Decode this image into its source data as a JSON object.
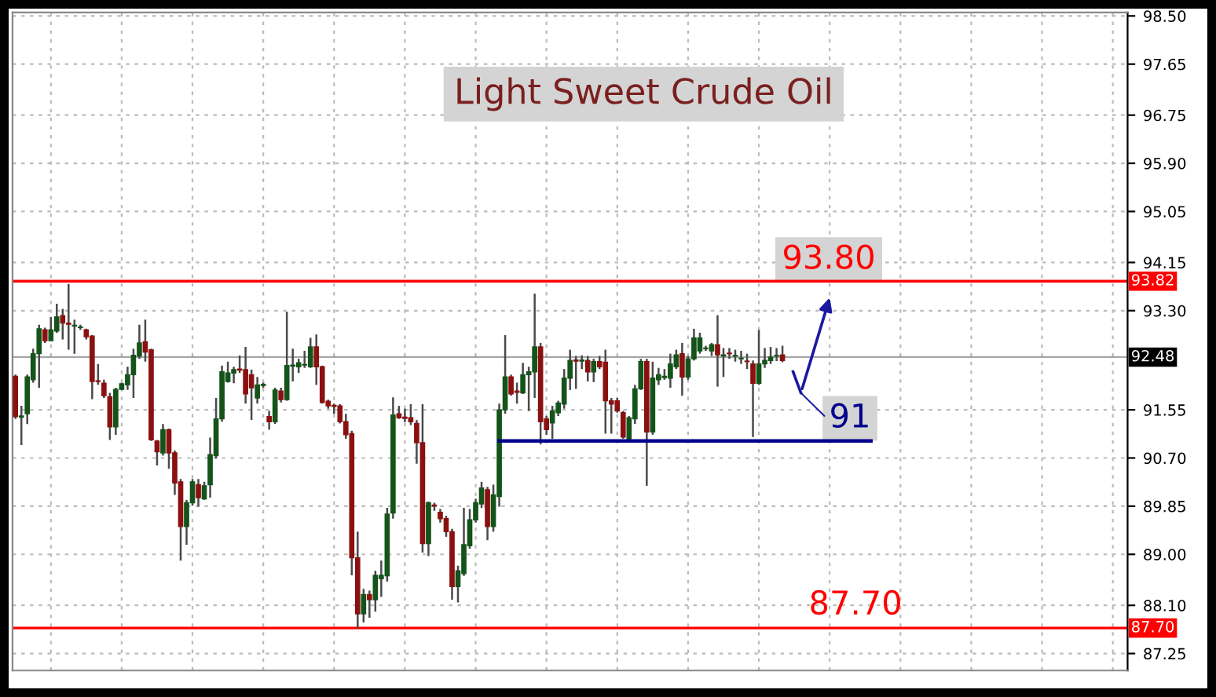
{
  "chart_data": {
    "type": "candlestick",
    "title": "Light Sweet Crude Oil",
    "categories": [
      null,
      null,
      null,
      null,
      null,
      null,
      null,
      null,
      null,
      null,
      null,
      null,
      null,
      null,
      null,
      null,
      null,
      null,
      null,
      null,
      null,
      null,
      null,
      null,
      null,
      null,
      null,
      null,
      null,
      null,
      null,
      null,
      null,
      null,
      null,
      null,
      null,
      null,
      null,
      null,
      null,
      null,
      null,
      null,
      null,
      null,
      null,
      null,
      null,
      null,
      null,
      null,
      null,
      null,
      null,
      null,
      null,
      null,
      null,
      null,
      null,
      null,
      null,
      null,
      null,
      null,
      null,
      null,
      null,
      null,
      null,
      null,
      null,
      null,
      null,
      null,
      null,
      null,
      null,
      null,
      null,
      null,
      null,
      null,
      null,
      null,
      null,
      null,
      null,
      null,
      null,
      null,
      null,
      null,
      null,
      null,
      null,
      null,
      null,
      null,
      null,
      null,
      null,
      null,
      null,
      null,
      null,
      null,
      null,
      null,
      null,
      null,
      null,
      null,
      null,
      null,
      null,
      null,
      null,
      null,
      null,
      null,
      null,
      null,
      null,
      null,
      null,
      null,
      null,
      null,
      null,
      null,
      null,
      null,
      null,
      null,
      null,
      null,
      null,
      null,
      null,
      null,
      null,
      null,
      null,
      null,
      null,
      null,
      null,
      null,
      null,
      null,
      null,
      null,
      null,
      null,
      null,
      null,
      null,
      null,
      null,
      null,
      null,
      null,
      null,
      null,
      null,
      null,
      null,
      null,
      null,
      null,
      null,
      null,
      null,
      null,
      null,
      null,
      null,
      null,
      null,
      null,
      null,
      null,
      null,
      null,
      null,
      null,
      null
    ],
    "colors": [
      "#8b1010",
      "#14531a",
      "#14531a",
      "#14531a",
      "#14531a",
      "#8b1010",
      "#14531a",
      "#14531a",
      "#8b1010",
      "#8b1010",
      "#14531a",
      "#14531a",
      "#8b1010",
      "#8b1010",
      "#8b1010",
      "#8b1010",
      "#8b1010",
      "#14531a",
      "#14531a",
      "#14531a",
      "#14531a",
      "#14531a",
      "#8b1010",
      "#8b1010",
      "#8b1010",
      "#14531a",
      "#8b1010",
      "#8b1010",
      "#8b1010",
      "#14531a",
      "#14531a",
      "#8b1010",
      "#14531a",
      "#14531a",
      "#14531a",
      "#14531a",
      "#14531a",
      "#14531a",
      "#8b1010",
      "#8b1010",
      "#8b1010",
      "#14531a",
      "#14531a",
      "#8b1010",
      "#14531a",
      "#8b1010",
      "#14531a",
      "#14531a",
      "#14531a",
      "#14531a",
      "#14531a",
      "#8b1010",
      "#8b1010",
      "#8b1010",
      "#8b1010",
      "#8b1010",
      "#8b1010",
      "#8b1010",
      "#8b1010",
      "#14531a",
      "#8b1010",
      "#14531a",
      "#14531a",
      "#14531a",
      "#14531a",
      "#8b1010",
      "#8b1010",
      "#8b1010",
      "#8b1010",
      "#8b1010",
      "#14531a",
      "#8b1010",
      "#8b1010",
      "#8b1010",
      "#8b1010",
      "#14531a",
      "#14531a",
      "#14531a",
      "#14531a",
      "#14531a",
      "#8b1010",
      "#14531a",
      "#14531a",
      "#14531a",
      "#8b1010",
      "#8b1010",
      "#14531a",
      "#14531a",
      "#14531a",
      "#8b1010",
      "#8b1010",
      "#14531a",
      "#14531a",
      "#14531a",
      "#14531a",
      "#8b1010",
      "#14531a",
      "#8b1010",
      "#14531a",
      "#8b1010",
      "#8b1010",
      "#8b1010",
      "#8b1010",
      "#8b1010",
      "#14531a",
      "#14531a",
      "#14531a",
      "#8b1010",
      "#14531a",
      "#14531a",
      "#14531a",
      "#14531a",
      "#14531a",
      "#8b1010",
      "#14531a",
      "#14531a",
      "#14531a",
      "#14531a",
      "#14531a",
      "#8b1010",
      "#14531a",
      "#8b1010",
      "#14531a",
      "#14531a",
      "#8b1010",
      "#8b1010",
      "#14531a",
      "#14531a",
      "#14531a",
      "#14531a",
      "#8b1010",
      null,
      null,
      null,
      null,
      null,
      null,
      null,
      null,
      null,
      null,
      null,
      null,
      null,
      null,
      null,
      null,
      null,
      null,
      null,
      null,
      null,
      null,
      null,
      null,
      null,
      null,
      null,
      null,
      null,
      null,
      null,
      null,
      null,
      null,
      null,
      null,
      null,
      null,
      null,
      null,
      null,
      null,
      null,
      null,
      null,
      null,
      null,
      null,
      null,
      null,
      null,
      null,
      null,
      null,
      null,
      null,
      null,
      null
    ],
    "ohlc": [
      [
        92.14,
        92.17,
        91.39,
        91.43
      ],
      [
        91.42,
        91.62,
        90.93,
        91.44
      ],
      [
        91.48,
        92.17,
        91.3,
        92.13
      ],
      [
        92.08,
        92.63,
        92.03,
        92.54
      ],
      [
        92.54,
        93.05,
        91.94,
        92.98
      ],
      [
        92.96,
        93.0,
        92.73,
        92.77
      ],
      [
        92.77,
        93.19,
        92.77,
        92.96
      ],
      [
        92.94,
        93.42,
        92.91,
        93.19
      ],
      [
        93.21,
        93.33,
        92.79,
        93.08
      ],
      [
        93.08,
        93.77,
        92.61,
        93.06
      ],
      [
        93.03,
        93.14,
        92.54,
        93.04
      ],
      [
        93.0,
        93.05,
        92.96,
        93.01
      ],
      [
        92.96,
        92.98,
        92.79,
        92.84
      ],
      [
        92.85,
        92.87,
        91.74,
        92.05
      ],
      [
        92.06,
        92.36,
        91.99,
        92.05
      ],
      [
        92.02,
        92.08,
        91.76,
        91.8
      ],
      [
        91.78,
        91.85,
        91.02,
        91.25
      ],
      [
        91.25,
        91.94,
        91.11,
        91.91
      ],
      [
        91.91,
        92.03,
        91.9,
        92.01
      ],
      [
        91.99,
        92.31,
        91.9,
        92.17
      ],
      [
        92.17,
        92.63,
        91.76,
        92.51
      ],
      [
        92.5,
        93.05,
        92.45,
        92.73
      ],
      [
        92.75,
        93.14,
        92.4,
        92.57
      ],
      [
        92.61,
        92.63,
        91.0,
        91.02
      ],
      [
        91.0,
        91.02,
        90.57,
        90.81
      ],
      [
        90.79,
        91.3,
        90.74,
        91.2
      ],
      [
        91.2,
        91.22,
        90.51,
        90.79
      ],
      [
        90.79,
        90.83,
        90.05,
        90.26
      ],
      [
        90.28,
        90.33,
        88.89,
        89.49
      ],
      [
        89.49,
        89.96,
        89.17,
        89.91
      ],
      [
        89.91,
        90.33,
        89.86,
        90.28
      ],
      [
        90.23,
        90.33,
        89.84,
        90.0
      ],
      [
        89.98,
        90.28,
        89.96,
        90.21
      ],
      [
        90.23,
        91.06,
        90.0,
        90.76
      ],
      [
        90.74,
        91.76,
        90.69,
        91.39
      ],
      [
        91.39,
        92.33,
        91.34,
        92.22
      ],
      [
        92.05,
        92.4,
        92.03,
        92.2
      ],
      [
        92.2,
        92.31,
        92.02,
        92.26
      ],
      [
        92.27,
        92.51,
        92.2,
        92.25
      ],
      [
        92.26,
        92.66,
        91.66,
        91.83
      ],
      [
        92.17,
        92.26,
        91.37,
        91.94
      ],
      [
        91.76,
        92.13,
        91.66,
        91.99
      ],
      [
        91.98,
        92.03,
        91.94,
        92.0
      ],
      [
        91.43,
        91.53,
        91.2,
        91.34
      ],
      [
        91.34,
        91.94,
        91.3,
        91.9
      ],
      [
        91.88,
        91.94,
        91.68,
        91.73
      ],
      [
        91.73,
        93.28,
        91.71,
        92.33
      ],
      [
        92.32,
        92.63,
        92.05,
        92.34
      ],
      [
        92.31,
        92.45,
        92.2,
        92.38
      ],
      [
        92.34,
        92.59,
        92.29,
        92.35
      ],
      [
        92.31,
        92.82,
        92.29,
        92.66
      ],
      [
        92.66,
        92.88,
        91.99,
        92.31
      ],
      [
        92.31,
        92.33,
        91.66,
        91.68
      ],
      [
        91.7,
        91.73,
        91.57,
        91.62
      ],
      [
        91.63,
        91.66,
        91.48,
        91.61
      ],
      [
        91.62,
        91.65,
        91.31,
        91.34
      ],
      [
        91.34,
        91.48,
        91.04,
        91.11
      ],
      [
        91.13,
        91.18,
        88.63,
        88.94
      ],
      [
        88.94,
        89.4,
        87.69,
        87.95
      ],
      [
        87.95,
        88.39,
        87.8,
        88.29
      ],
      [
        88.29,
        88.36,
        87.88,
        88.2
      ],
      [
        88.2,
        88.71,
        87.99,
        88.63
      ],
      [
        88.57,
        88.89,
        88.25,
        88.63
      ],
      [
        88.62,
        89.82,
        88.52,
        89.71
      ],
      [
        89.73,
        91.77,
        89.63,
        91.46
      ],
      [
        91.48,
        91.62,
        91.39,
        91.41
      ],
      [
        91.42,
        91.57,
        91.33,
        91.4
      ],
      [
        91.41,
        91.65,
        91.28,
        91.34
      ],
      [
        91.31,
        91.37,
        90.6,
        90.97
      ],
      [
        90.97,
        91.65,
        89.03,
        89.19
      ],
      [
        89.19,
        89.93,
        88.97,
        89.91
      ],
      [
        89.87,
        89.91,
        89.77,
        89.85
      ],
      [
        89.74,
        89.8,
        89.56,
        89.63
      ],
      [
        89.63,
        89.68,
        89.31,
        89.4
      ],
      [
        89.4,
        89.45,
        88.2,
        88.43
      ],
      [
        88.43,
        88.8,
        88.15,
        88.71
      ],
      [
        88.66,
        89.82,
        88.62,
        89.17
      ],
      [
        89.15,
        89.8,
        89.1,
        89.61
      ],
      [
        89.61,
        89.98,
        89.56,
        89.91
      ],
      [
        89.89,
        90.28,
        89.82,
        90.17
      ],
      [
        90.14,
        90.19,
        89.25,
        89.49
      ],
      [
        89.49,
        90.23,
        89.4,
        90.05
      ],
      [
        90.02,
        91.66,
        89.84,
        91.55
      ],
      [
        91.55,
        92.87,
        91.48,
        92.13
      ],
      [
        92.13,
        92.17,
        91.8,
        91.83
      ],
      [
        91.88,
        92.03,
        91.66,
        91.86
      ],
      [
        91.85,
        92.38,
        91.83,
        92.17
      ],
      [
        92.17,
        92.31,
        91.53,
        92.22
      ],
      [
        92.22,
        93.6,
        91.76,
        92.66
      ],
      [
        92.66,
        92.73,
        90.94,
        91.34
      ],
      [
        91.39,
        91.44,
        91.11,
        91.2
      ],
      [
        91.32,
        91.62,
        91.04,
        91.53
      ],
      [
        91.5,
        91.71,
        91.44,
        91.67
      ],
      [
        91.65,
        92.27,
        91.57,
        92.11
      ],
      [
        92.11,
        92.61,
        91.9,
        92.42
      ],
      [
        92.43,
        92.5,
        91.92,
        92.41
      ],
      [
        92.41,
        92.51,
        92.27,
        92.43
      ],
      [
        92.42,
        92.5,
        92.05,
        92.22
      ],
      [
        92.22,
        92.45,
        92.04,
        92.4
      ],
      [
        92.4,
        92.5,
        92.27,
        92.31
      ],
      [
        92.39,
        92.61,
        91.13,
        91.71
      ],
      [
        91.71,
        91.76,
        91.13,
        91.65
      ],
      [
        91.71,
        91.76,
        91.5,
        91.53
      ],
      [
        91.5,
        91.53,
        91.04,
        91.07
      ],
      [
        91.04,
        91.44,
        91.02,
        91.41
      ],
      [
        91.39,
        91.99,
        91.3,
        91.92
      ],
      [
        91.92,
        92.45,
        91.9,
        92.4
      ],
      [
        92.4,
        92.45,
        90.21,
        91.16
      ],
      [
        91.16,
        92.4,
        91.11,
        92.11
      ],
      [
        92.08,
        92.29,
        91.99,
        92.17
      ],
      [
        92.12,
        92.27,
        92.08,
        92.14
      ],
      [
        92.11,
        92.54,
        91.94,
        92.36
      ],
      [
        92.31,
        92.61,
        92.27,
        92.52
      ],
      [
        92.54,
        92.73,
        91.8,
        92.13
      ],
      [
        92.13,
        92.5,
        92.08,
        92.45
      ],
      [
        92.45,
        92.98,
        92.42,
        92.82
      ],
      [
        92.59,
        92.91,
        92.54,
        92.82
      ],
      [
        92.63,
        92.68,
        92.59,
        92.64
      ],
      [
        92.59,
        92.73,
        92.5,
        92.7
      ],
      [
        92.7,
        93.22,
        91.96,
        92.52
      ],
      [
        92.5,
        92.64,
        92.13,
        92.52
      ],
      [
        92.55,
        92.64,
        92.45,
        92.54
      ],
      [
        92.5,
        92.61,
        92.4,
        92.51
      ],
      [
        92.45,
        92.59,
        92.36,
        92.46
      ],
      [
        92.41,
        92.54,
        92.27,
        92.4
      ],
      [
        92.36,
        92.42,
        91.07,
        92.02
      ],
      [
        92.02,
        92.96,
        91.99,
        92.36
      ],
      [
        92.36,
        92.64,
        92.29,
        92.42
      ],
      [
        92.42,
        92.66,
        92.36,
        92.48
      ],
      [
        92.5,
        92.64,
        92.41,
        92.51
      ],
      [
        92.52,
        92.68,
        92.39,
        92.42
      ],
      null,
      null,
      null,
      null,
      null,
      null,
      null,
      null,
      null,
      null,
      null,
      null,
      null,
      null,
      null,
      null,
      null,
      null,
      null,
      null,
      null,
      null,
      null,
      null,
      null,
      null,
      null,
      null,
      null,
      null,
      null,
      null,
      null,
      null,
      null,
      null,
      null,
      null,
      null,
      null,
      null,
      null,
      null,
      null,
      null,
      null,
      null,
      null,
      null,
      null,
      null,
      null,
      null,
      null,
      null,
      null,
      null,
      null
    ],
    "series": [
      {
        "type": "line",
        "color": "#00008b",
        "values": [
          null,
          null,
          null,
          null,
          null,
          null,
          null,
          null,
          null,
          null,
          null,
          null,
          null,
          null,
          null,
          null,
          null,
          null,
          null,
          null,
          null,
          null,
          null,
          null,
          null,
          null,
          null,
          null,
          null,
          null,
          null,
          null,
          null,
          null,
          null,
          null,
          null,
          null,
          null,
          null,
          null,
          null,
          null,
          null,
          null,
          null,
          null,
          null,
          null,
          null,
          null,
          null,
          null,
          null,
          null,
          null,
          null,
          null,
          null,
          null,
          null,
          null,
          null,
          null,
          null,
          null,
          null,
          null,
          null,
          null,
          null,
          null,
          null,
          null,
          null,
          null,
          null,
          null,
          null,
          null,
          null,
          null,
          91,
          91,
          91,
          91,
          91,
          91,
          91,
          91,
          91,
          91,
          91,
          91,
          91,
          91,
          91,
          91,
          91,
          91,
          91,
          91,
          91,
          91,
          91,
          91,
          91,
          91,
          91,
          91,
          91,
          91,
          91,
          91,
          91,
          91,
          91,
          91,
          91,
          91,
          91,
          91,
          91,
          91,
          91,
          91,
          91,
          91,
          91,
          91,
          91,
          91,
          91,
          91,
          91,
          91,
          91,
          91,
          91,
          91,
          91,
          91,
          91,
          91,
          91,
          91,
          null,
          null,
          null,
          null,
          null,
          null,
          null,
          null,
          null,
          null,
          null,
          null,
          null,
          null,
          null,
          null,
          null,
          null,
          null,
          null,
          null,
          null,
          null,
          null,
          null,
          null,
          null,
          null,
          null,
          null,
          null,
          null,
          null,
          null,
          null,
          null,
          null,
          null,
          null,
          null,
          null,
          null,
          null
        ]
      }
    ],
    "ylim": [
      86.95,
      98.56
    ],
    "yticks": [
      {
        "value": 98.5,
        "label": "98.50"
      },
      97.65,
      96.75,
      {
        "value": 95.9,
        "label": "95.90"
      },
      95.05,
      94.15,
      {
        "value": 93.3,
        "label": "93.30"
      },
      91.55,
      {
        "value": 90.7,
        "label": "90.70"
      },
      89.85,
      {
        "value": 89.0,
        "label": "89.00"
      },
      {
        "value": 88.1,
        "label": "88.10"
      },
      87.25
    ],
    "ref_lines": [
      {
        "axis": "y",
        "value": 93.82,
        "label": "93.82",
        "color": "#ff0000"
      },
      {
        "axis": "y",
        "value": 92.48,
        "label": "92.48",
        "color": "#000000"
      },
      {
        "axis": "y",
        "value": 87.7,
        "label": "87.70",
        "color": "#ff0000"
      }
    ],
    "annotations": [
      {
        "text": "93.80",
        "y": 93.8
      },
      {
        "text": "91",
        "y": 91
      },
      {
        "text": "87.70",
        "y": 87.7
      }
    ],
    "grid": true
  }
}
